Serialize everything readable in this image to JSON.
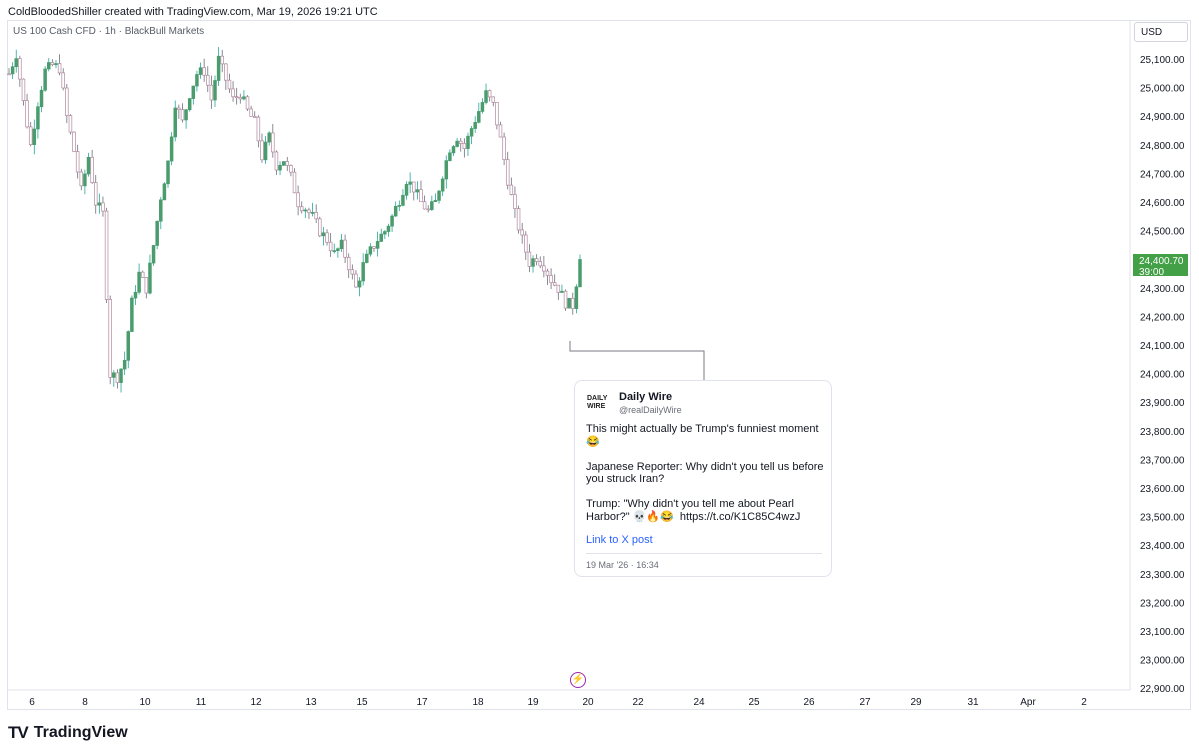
{
  "header": {
    "caption": "ColdBloodedShiller created with TradingView.com, Mar 19, 2026 19:21 UTC"
  },
  "chart_header": {
    "symbol": "US 100 Cash CFD · 1h · BlackBull Markets",
    "currency": "USD"
  },
  "price_tag": {
    "value": "24,400.70",
    "countdown": "39:00",
    "color": "#43a047"
  },
  "tweet": {
    "logo_text_1": "DAILY",
    "logo_text_2": "WIRE",
    "author": "Daily Wire",
    "handle": "@realDailyWire",
    "body": "This might actually be Trump's funniest moment 😂\n\nJapanese Reporter: Why didn't you tell us before you struck Iran?\n\nTrump: \"Why didn't you tell me about Pearl Harbor?\" 💀🔥😂  https://t.co/K1C85C4wzJ",
    "link": "Link to X post",
    "date": "19 Mar '26 · 16:34"
  },
  "footer": {
    "logo_mark": "TV",
    "brand": "TradingView"
  },
  "colors": {
    "up": "#26a69a",
    "up_body": "#4a9c6d",
    "down": "#b0889e",
    "frame": "#e0e3eb",
    "link": "#2962ff"
  },
  "icons": {
    "bolt": "lightning-bolt-icon",
    "logo": "tradingview-logo-icon"
  },
  "chart_data": {
    "type": "candlestick",
    "title": "",
    "xlabel": "",
    "ylabel": "",
    "ylim": [
      22900,
      25200
    ],
    "y_ticks": [
      "25,100.00",
      "25,000.00",
      "24,900.00",
      "24,800.00",
      "24,700.00",
      "24,600.00",
      "24,500.00",
      "24,400.00",
      "24,300.00",
      "24,200.00",
      "24,100.00",
      "24,000.00",
      "23,900.00",
      "23,800.00",
      "23,700.00",
      "23,600.00",
      "23,500.00",
      "23,400.00",
      "23,300.00",
      "23,200.00",
      "23,100.00",
      "23,000.00",
      "22,900.00"
    ],
    "y_tick_values": [
      25100,
      25000,
      24900,
      24800,
      24700,
      24600,
      24500,
      24400,
      24300,
      24200,
      24100,
      24000,
      23900,
      23800,
      23700,
      23600,
      23500,
      23400,
      23300,
      23200,
      23100,
      23000,
      22900
    ],
    "x_ticks": [
      "6",
      "8",
      "10",
      "11",
      "12",
      "13",
      "15",
      "17",
      "18",
      "19",
      "20",
      "22",
      "24",
      "25",
      "26",
      "27",
      "29",
      "31",
      "Apr",
      "2"
    ],
    "close_path": [
      [
        0,
        25050
      ],
      [
        2,
        25120
      ],
      [
        4,
        24950
      ],
      [
        6,
        24800
      ],
      [
        8,
        24950
      ],
      [
        10,
        25060
      ],
      [
        12,
        25080
      ],
      [
        14,
        25070
      ],
      [
        16,
        24900
      ],
      [
        18,
        24780
      ],
      [
        20,
        24640
      ],
      [
        22,
        24760
      ],
      [
        24,
        24600
      ],
      [
        26,
        24560
      ],
      [
        28,
        24000
      ],
      [
        30,
        23990
      ],
      [
        32,
        24050
      ],
      [
        34,
        24250
      ],
      [
        36,
        24350
      ],
      [
        38,
        24300
      ],
      [
        40,
        24450
      ],
      [
        42,
        24620
      ],
      [
        44,
        24740
      ],
      [
        46,
        24950
      ],
      [
        48,
        24880
      ],
      [
        50,
        24980
      ],
      [
        52,
        25050
      ],
      [
        54,
        25060
      ],
      [
        56,
        24960
      ],
      [
        58,
        25100
      ],
      [
        60,
        25030
      ],
      [
        62,
        24960
      ],
      [
        64,
        24980
      ],
      [
        66,
        24920
      ],
      [
        68,
        24880
      ],
      [
        70,
        24760
      ],
      [
        72,
        24830
      ],
      [
        74,
        24730
      ],
      [
        76,
        24750
      ],
      [
        78,
        24690
      ],
      [
        80,
        24600
      ],
      [
        82,
        24580
      ],
      [
        84,
        24550
      ],
      [
        86,
        24500
      ],
      [
        88,
        24470
      ],
      [
        90,
        24420
      ],
      [
        92,
        24450
      ],
      [
        94,
        24380
      ],
      [
        96,
        24300
      ],
      [
        98,
        24380
      ],
      [
        100,
        24430
      ],
      [
        102,
        24470
      ],
      [
        104,
        24500
      ],
      [
        106,
        24550
      ],
      [
        108,
        24610
      ],
      [
        110,
        24680
      ],
      [
        112,
        24650
      ],
      [
        114,
        24600
      ],
      [
        116,
        24570
      ],
      [
        118,
        24600
      ],
      [
        120,
        24700
      ],
      [
        122,
        24790
      ],
      [
        124,
        24830
      ],
      [
        126,
        24790
      ],
      [
        128,
        24860
      ],
      [
        130,
        24920
      ],
      [
        132,
        24980
      ],
      [
        134,
        24940
      ],
      [
        136,
        24820
      ],
      [
        138,
        24680
      ],
      [
        140,
        24560
      ],
      [
        142,
        24470
      ],
      [
        144,
        24390
      ],
      [
        146,
        24410
      ],
      [
        148,
        24380
      ],
      [
        150,
        24330
      ],
      [
        152,
        24300
      ],
      [
        154,
        24250
      ],
      [
        156,
        24240
      ],
      [
        158,
        24400.7
      ]
    ]
  }
}
